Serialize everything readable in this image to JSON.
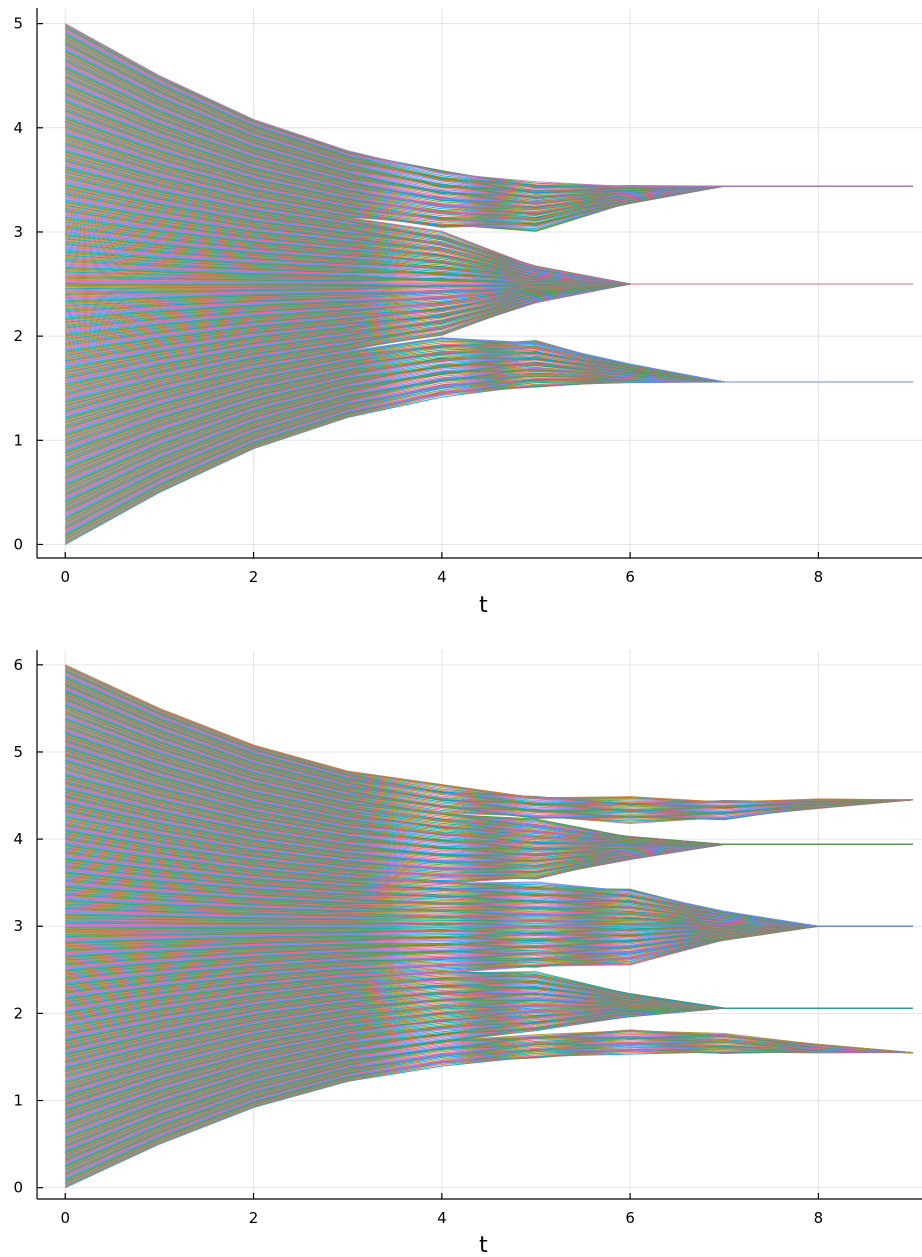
{
  "chart_data": [
    {
      "type": "line",
      "title": "",
      "xlabel": "t",
      "ylabel": "",
      "xlim": [
        -0.3,
        9.1
      ],
      "ylim": [
        -0.13,
        5.15
      ],
      "xticks": [
        0,
        2,
        4,
        6,
        8
      ],
      "yticks": [
        0,
        1,
        2,
        3,
        4,
        5
      ],
      "x": [
        0,
        1,
        2,
        3,
        4,
        5,
        6,
        7,
        8,
        9
      ],
      "grid": true,
      "legend": "none",
      "n_trajectories": 500,
      "initial_range": [
        0,
        5
      ],
      "envelope_upper": [
        5.0,
        4.5,
        4.08,
        3.78,
        3.58,
        3.47,
        3.44,
        3.44,
        3.44,
        3.44
      ],
      "envelope_lower": [
        0.0,
        0.5,
        0.92,
        1.22,
        1.42,
        1.52,
        1.55,
        1.56,
        1.56,
        1.56
      ],
      "clusters": [
        {
          "value": 3.44,
          "settles_at": 7
        },
        {
          "value": 2.5,
          "settles_at": 6
        },
        {
          "value": 1.56,
          "settles_at": 7
        }
      ],
      "series_colors": [
        "#009af9",
        "#e26f46",
        "#3ea44e",
        "#c271d2",
        "#ac8e18",
        "#00a9ad",
        "#ed5e93",
        "#c68225",
        "#00a98d",
        "#8e971e",
        "#00a9cd",
        "#9b7fe9",
        "#618df6",
        "#f16072",
        "#dd64b5",
        "#6b9d1d"
      ]
    },
    {
      "type": "line",
      "title": "",
      "xlabel": "t",
      "ylabel": "",
      "xlim": [
        -0.3,
        9.1
      ],
      "ylim": [
        -0.13,
        6.17
      ],
      "xticks": [
        0,
        2,
        4,
        6,
        8
      ],
      "yticks": [
        0,
        1,
        2,
        3,
        4,
        5,
        6
      ],
      "x": [
        0,
        1,
        2,
        3,
        4,
        5,
        6,
        7,
        8,
        9
      ],
      "grid": true,
      "legend": "none",
      "n_trajectories": 600,
      "initial_range": [
        0,
        6
      ],
      "envelope_upper": [
        6.0,
        5.5,
        5.08,
        4.78,
        4.6,
        4.5,
        4.46,
        4.45,
        4.45,
        4.45
      ],
      "envelope_lower": [
        0.0,
        0.5,
        0.92,
        1.22,
        1.4,
        1.5,
        1.54,
        1.55,
        1.55,
        1.55
      ],
      "clusters": [
        {
          "value": 4.45,
          "settles_at": 9
        },
        {
          "value": 3.94,
          "settles_at": 7
        },
        {
          "value": 3.0,
          "settles_at": 8
        },
        {
          "value": 2.06,
          "settles_at": 7
        },
        {
          "value": 1.55,
          "settles_at": 9
        }
      ],
      "series_colors": [
        "#009af9",
        "#e26f46",
        "#3ea44e",
        "#c271d2",
        "#ac8e18",
        "#00a9ad",
        "#ed5e93",
        "#c68225",
        "#00a98d",
        "#8e971e",
        "#00a9cd",
        "#9b7fe9",
        "#618df6",
        "#f16072",
        "#dd64b5",
        "#6b9d1d"
      ]
    }
  ]
}
